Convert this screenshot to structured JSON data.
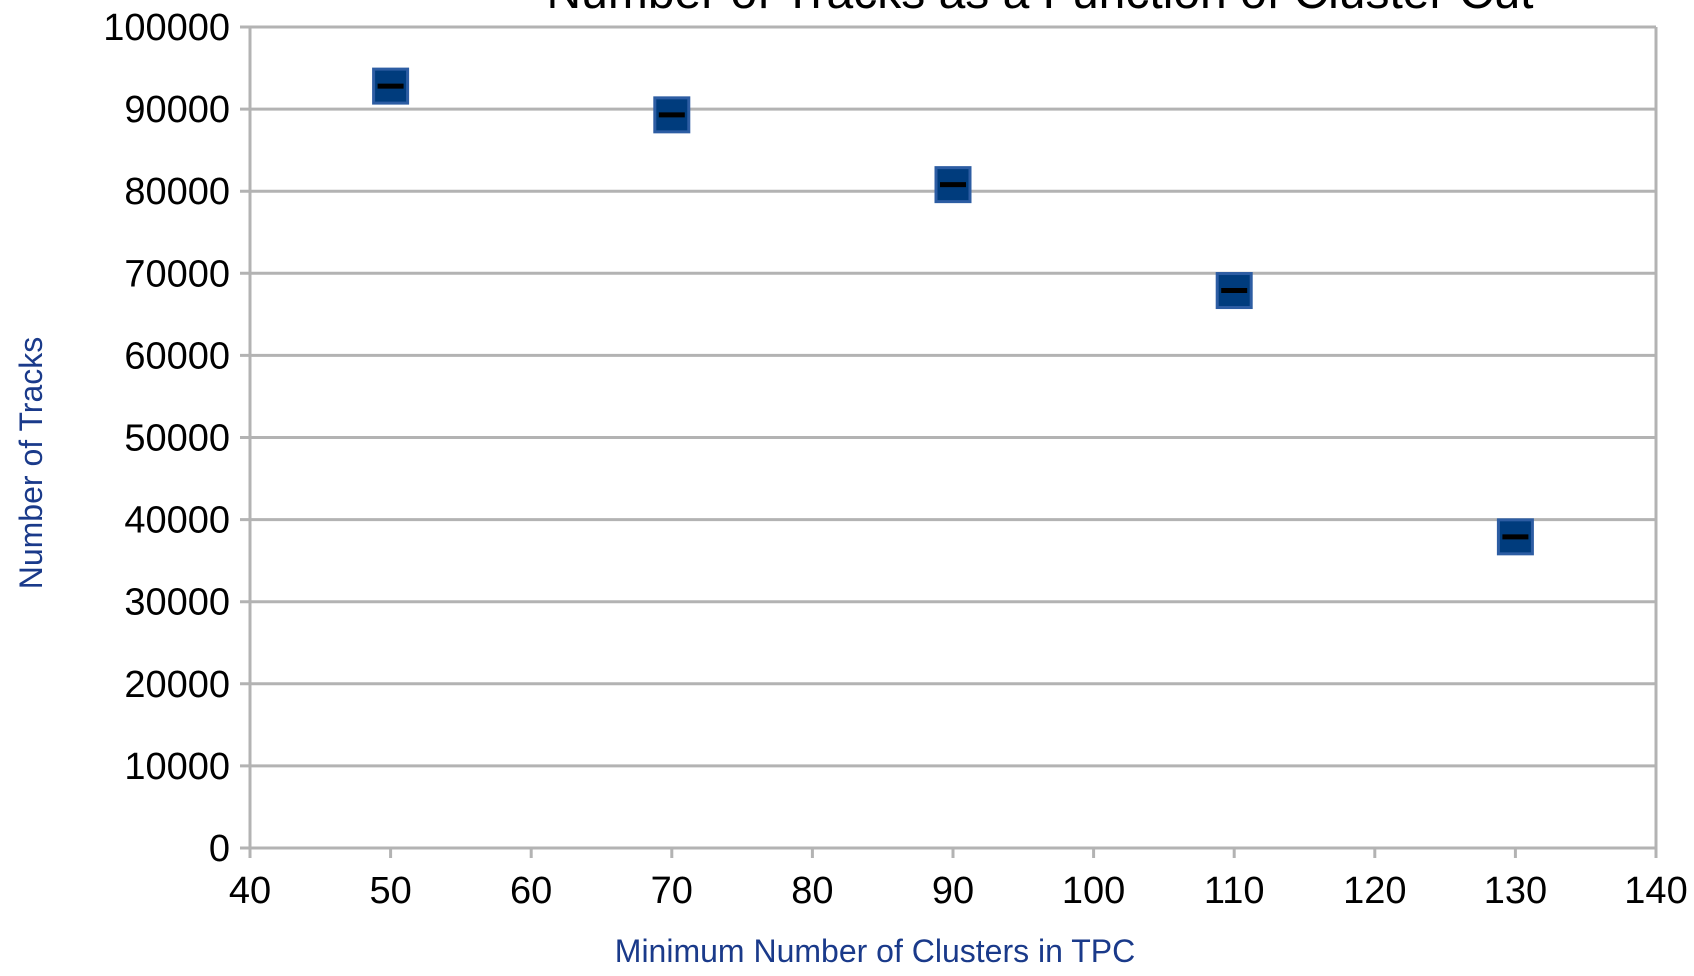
{
  "chart_data": {
    "type": "scatter",
    "title": "Number of Tracks as a Function of Cluster Cut",
    "xlabel": "Minimum Number of Clusters in TPC",
    "ylabel": "Number of Tracks",
    "xlim": [
      40,
      140
    ],
    "ylim": [
      0,
      100000
    ],
    "xticks": [
      "40",
      "50",
      "60",
      "70",
      "80",
      "90",
      "100",
      "110",
      "120",
      "130",
      "140"
    ],
    "yticks": [
      "0",
      "10000",
      "20000",
      "30000",
      "40000",
      "50000",
      "60000",
      "70000",
      "80000",
      "90000",
      "100000"
    ],
    "grid": "horizontal",
    "legend": "none",
    "marker_color": "#003c7d",
    "errorbar_color": "#000000",
    "series": [
      {
        "x": [
          50,
          70,
          90,
          110,
          130
        ],
        "y": [
          92800,
          89300,
          80800,
          67900,
          37900
        ]
      }
    ]
  }
}
